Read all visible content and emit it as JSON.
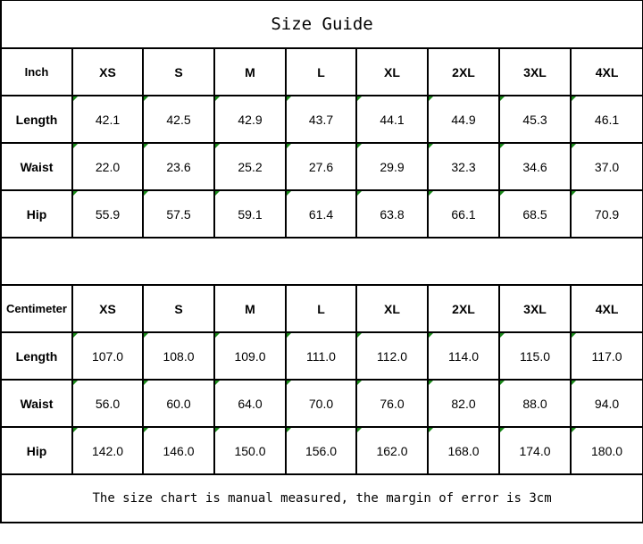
{
  "title": "Size Guide",
  "sizes": [
    "XS",
    "S",
    "M",
    "L",
    "XL",
    "2XL",
    "3XL",
    "4XL"
  ],
  "inch": {
    "unit_label": "Inch",
    "rows": [
      {
        "label": "Length",
        "values": [
          "42.1",
          "42.5",
          "42.9",
          "43.7",
          "44.1",
          "44.9",
          "45.3",
          "46.1"
        ]
      },
      {
        "label": "Waist",
        "values": [
          "22.0",
          "23.6",
          "25.2",
          "27.6",
          "29.9",
          "32.3",
          "34.6",
          "37.0"
        ]
      },
      {
        "label": "Hip",
        "values": [
          "55.9",
          "57.5",
          "59.1",
          "61.4",
          "63.8",
          "66.1",
          "68.5",
          "70.9"
        ]
      }
    ]
  },
  "cm": {
    "unit_label": "Centimeter",
    "rows": [
      {
        "label": "Length",
        "values": [
          "107.0",
          "108.0",
          "109.0",
          "111.0",
          "112.0",
          "114.0",
          "115.0",
          "117.0"
        ]
      },
      {
        "label": "Waist",
        "values": [
          "56.0",
          "60.0",
          "64.0",
          "70.0",
          "76.0",
          "82.0",
          "88.0",
          "94.0"
        ]
      },
      {
        "label": "Hip",
        "values": [
          "142.0",
          "146.0",
          "150.0",
          "156.0",
          "162.0",
          "168.0",
          "174.0",
          "180.0"
        ]
      }
    ]
  },
  "note": "The size chart is manual measured, the margin of error is 3cm",
  "colors": {
    "indicator": "#1a8a1a",
    "border": "#000000"
  }
}
